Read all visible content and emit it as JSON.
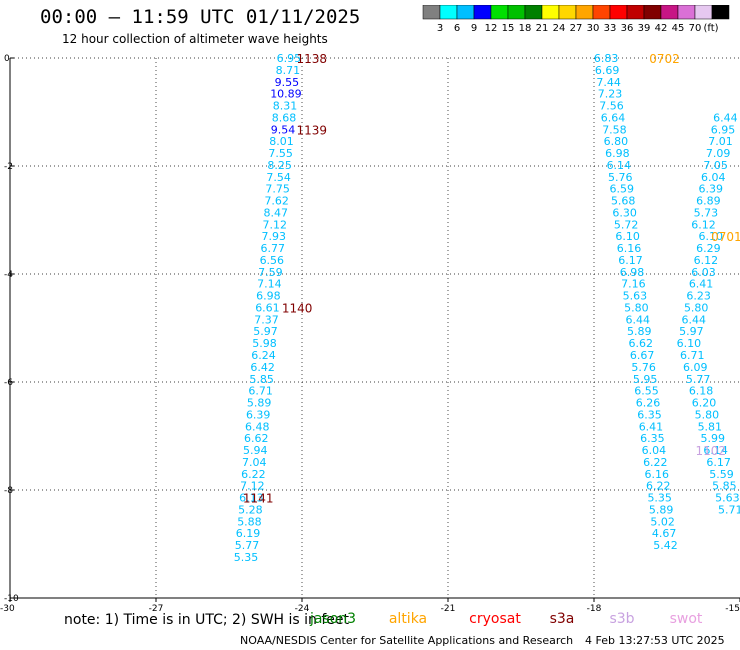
{
  "header": {
    "title": "00:00 – 11:59 UTC 01/11/2025",
    "subtitle": "12 hour collection of altimeter wave heights"
  },
  "colorbar": {
    "colors": [
      "#808080",
      "#00ffff",
      "#00bfff",
      "#0000ff",
      "#00e000",
      "#00c000",
      "#008000",
      "#ffff00",
      "#ffd700",
      "#ffa500",
      "#ff4500",
      "#ff0000",
      "#c00000",
      "#800000",
      "#c71585",
      "#da70d6",
      "#e6c8f0",
      "#000000"
    ],
    "ticks": [
      "3",
      "6",
      "9",
      "12",
      "15",
      "18",
      "21",
      "24",
      "27",
      "30",
      "33",
      "36",
      "39",
      "42",
      "45",
      "70"
    ],
    "unit": "(ft)"
  },
  "footer": {
    "note": "note: 1) Time is in UTC; 2) SWH is in feet",
    "credit": "NOAA/NESDIS Center for Satellite Applications and Research",
    "timestamp": "4 Feb 13:27:53 UTC 2025"
  },
  "legend": [
    {
      "name": "jason3",
      "color": "#008000"
    },
    {
      "name": "altika",
      "color": "#ffa500"
    },
    {
      "name": "cryosat",
      "color": "#ff0000"
    },
    {
      "name": "s3a",
      "color": "#800000"
    },
    {
      "name": "s3b",
      "color": "#c8a2e0"
    },
    {
      "name": "swot",
      "color": "#e8a0e0"
    }
  ],
  "chart_data": {
    "type": "scatter",
    "xlim": [
      -30,
      -15
    ],
    "ylim": [
      -10,
      0
    ],
    "xticks": [
      "-30",
      "-27",
      "-24",
      "-21",
      "-18",
      "-15"
    ],
    "yticks": [
      "0",
      "-2",
      "-4",
      "-6",
      "-8",
      "-10"
    ],
    "tracks": [
      {
        "points": [
          {
            "x": -24.27,
            "y": 0.0,
            "v": "6.95",
            "c": "#00bfff"
          },
          {
            "x": -24.29,
            "y": -0.22,
            "v": "8.71",
            "c": "#00bfff"
          },
          {
            "x": -24.31,
            "y": -0.44,
            "v": "9.55",
            "c": "#0000ff"
          },
          {
            "x": -24.33,
            "y": -0.66,
            "v": "10.89",
            "c": "#0000ff"
          },
          {
            "x": -24.35,
            "y": -0.88,
            "v": "8.31",
            "c": "#00bfff"
          },
          {
            "x": -24.37,
            "y": -1.1,
            "v": "8.68",
            "c": "#00bfff"
          },
          {
            "x": -24.39,
            "y": -1.32,
            "v": "9.54",
            "c": "#0000ff"
          },
          {
            "x": -24.42,
            "y": -1.54,
            "v": "8.01",
            "c": "#00bfff"
          },
          {
            "x": -24.44,
            "y": -1.76,
            "v": "7.55",
            "c": "#00bfff"
          },
          {
            "x": -24.46,
            "y": -1.98,
            "v": "8.25",
            "c": "#00bfff"
          },
          {
            "x": -24.48,
            "y": -2.2,
            "v": "7.54",
            "c": "#00bfff"
          },
          {
            "x": -24.5,
            "y": -2.42,
            "v": "7.75",
            "c": "#00bfff"
          },
          {
            "x": -24.52,
            "y": -2.64,
            "v": "7.62",
            "c": "#00bfff"
          },
          {
            "x": -24.54,
            "y": -2.86,
            "v": "8.47",
            "c": "#00bfff"
          },
          {
            "x": -24.56,
            "y": -3.08,
            "v": "7.12",
            "c": "#00bfff"
          },
          {
            "x": -24.58,
            "y": -3.3,
            "v": "7.93",
            "c": "#00bfff"
          },
          {
            "x": -24.6,
            "y": -3.52,
            "v": "6.77",
            "c": "#00bfff"
          },
          {
            "x": -24.62,
            "y": -3.74,
            "v": "6.56",
            "c": "#00bfff"
          },
          {
            "x": -24.65,
            "y": -3.96,
            "v": "7.59",
            "c": "#00bfff"
          },
          {
            "x": -24.67,
            "y": -4.18,
            "v": "7.14",
            "c": "#00bfff"
          },
          {
            "x": -24.69,
            "y": -4.4,
            "v": "6.98",
            "c": "#00bfff"
          },
          {
            "x": -24.71,
            "y": -4.62,
            "v": "6.61",
            "c": "#00bfff"
          },
          {
            "x": -24.73,
            "y": -4.84,
            "v": "7.37",
            "c": "#00bfff"
          },
          {
            "x": -24.75,
            "y": -5.06,
            "v": "5.97",
            "c": "#00bfff"
          },
          {
            "x": -24.77,
            "y": -5.28,
            "v": "5.98",
            "c": "#00bfff"
          },
          {
            "x": -24.79,
            "y": -5.5,
            "v": "6.24",
            "c": "#00bfff"
          },
          {
            "x": -24.81,
            "y": -5.72,
            "v": "6.42",
            "c": "#00bfff"
          },
          {
            "x": -24.83,
            "y": -5.94,
            "v": "5.85",
            "c": "#00bfff"
          },
          {
            "x": -24.85,
            "y": -6.16,
            "v": "6.71",
            "c": "#00bfff"
          },
          {
            "x": -24.88,
            "y": -6.38,
            "v": "5.89",
            "c": "#00bfff"
          },
          {
            "x": -24.9,
            "y": -6.6,
            "v": "6.39",
            "c": "#00bfff"
          },
          {
            "x": -24.92,
            "y": -6.82,
            "v": "6.48",
            "c": "#00bfff"
          },
          {
            "x": -24.94,
            "y": -7.04,
            "v": "6.62",
            "c": "#00bfff"
          },
          {
            "x": -24.96,
            "y": -7.26,
            "v": "5.94",
            "c": "#00bfff"
          },
          {
            "x": -24.98,
            "y": -7.48,
            "v": "7.04",
            "c": "#00bfff"
          },
          {
            "x": -25.0,
            "y": -7.7,
            "v": "6.22",
            "c": "#00bfff"
          },
          {
            "x": -25.02,
            "y": -7.92,
            "v": "7.12",
            "c": "#00bfff"
          },
          {
            "x": -25.04,
            "y": -8.14,
            "v": "6.13",
            "c": "#00bfff"
          },
          {
            "x": -25.06,
            "y": -8.36,
            "v": "5.28",
            "c": "#00bfff"
          },
          {
            "x": -25.08,
            "y": -8.58,
            "v": "5.88",
            "c": "#00bfff"
          },
          {
            "x": -25.11,
            "y": -8.8,
            "v": "6.19",
            "c": "#00bfff"
          },
          {
            "x": -25.13,
            "y": -9.02,
            "v": "5.77",
            "c": "#00bfff"
          },
          {
            "x": -25.15,
            "y": -9.24,
            "v": "5.35",
            "c": "#00bfff"
          }
        ]
      },
      {
        "points": [
          {
            "x": -17.75,
            "y": 0.0,
            "v": "6.83",
            "c": "#00bfff"
          },
          {
            "x": -17.73,
            "y": -0.22,
            "v": "6.69",
            "c": "#00bfff"
          },
          {
            "x": -17.7,
            "y": -0.44,
            "v": "7.44",
            "c": "#00bfff"
          },
          {
            "x": -17.67,
            "y": -0.66,
            "v": "7.23",
            "c": "#00bfff"
          },
          {
            "x": -17.64,
            "y": -0.88,
            "v": "7.56",
            "c": "#00bfff"
          },
          {
            "x": -17.61,
            "y": -1.1,
            "v": "6.64",
            "c": "#00bfff"
          },
          {
            "x": -17.58,
            "y": -1.32,
            "v": "7.58",
            "c": "#00bfff"
          },
          {
            "x": -17.55,
            "y": -1.54,
            "v": "6.80",
            "c": "#00bfff"
          },
          {
            "x": -17.52,
            "y": -1.76,
            "v": "6.98",
            "c": "#00bfff"
          },
          {
            "x": -17.49,
            "y": -1.98,
            "v": "6.14",
            "c": "#00bfff"
          },
          {
            "x": -17.46,
            "y": -2.2,
            "v": "5.76",
            "c": "#00bfff"
          },
          {
            "x": -17.43,
            "y": -2.42,
            "v": "6.59",
            "c": "#00bfff"
          },
          {
            "x": -17.4,
            "y": -2.64,
            "v": "5.68",
            "c": "#00bfff"
          },
          {
            "x": -17.37,
            "y": -2.86,
            "v": "6.30",
            "c": "#00bfff"
          },
          {
            "x": -17.34,
            "y": -3.08,
            "v": "5.72",
            "c": "#00bfff"
          },
          {
            "x": -17.31,
            "y": -3.3,
            "v": "6.10",
            "c": "#00bfff"
          },
          {
            "x": -17.28,
            "y": -3.52,
            "v": "6.16",
            "c": "#00bfff"
          },
          {
            "x": -17.25,
            "y": -3.74,
            "v": "6.17",
            "c": "#00bfff"
          },
          {
            "x": -17.22,
            "y": -3.96,
            "v": "6.98",
            "c": "#00bfff"
          },
          {
            "x": -17.19,
            "y": -4.18,
            "v": "7.16",
            "c": "#00bfff"
          },
          {
            "x": -17.16,
            "y": -4.4,
            "v": "5.63",
            "c": "#00bfff"
          },
          {
            "x": -17.13,
            "y": -4.62,
            "v": "5.80",
            "c": "#00bfff"
          },
          {
            "x": -17.1,
            "y": -4.84,
            "v": "6.44",
            "c": "#00bfff"
          },
          {
            "x": -17.07,
            "y": -5.06,
            "v": "5.89",
            "c": "#00bfff"
          },
          {
            "x": -17.04,
            "y": -5.28,
            "v": "6.62",
            "c": "#00bfff"
          },
          {
            "x": -17.01,
            "y": -5.5,
            "v": "6.67",
            "c": "#00bfff"
          },
          {
            "x": -16.98,
            "y": -5.72,
            "v": "5.76",
            "c": "#00bfff"
          },
          {
            "x": -16.95,
            "y": -5.94,
            "v": "5.95",
            "c": "#00bfff"
          },
          {
            "x": -16.92,
            "y": -6.16,
            "v": "6.55",
            "c": "#00bfff"
          },
          {
            "x": -16.89,
            "y": -6.38,
            "v": "6.26",
            "c": "#00bfff"
          },
          {
            "x": -16.86,
            "y": -6.6,
            "v": "6.35",
            "c": "#00bfff"
          },
          {
            "x": -16.83,
            "y": -6.82,
            "v": "6.41",
            "c": "#00bfff"
          },
          {
            "x": -16.8,
            "y": -7.04,
            "v": "6.35",
            "c": "#00bfff"
          },
          {
            "x": -16.77,
            "y": -7.26,
            "v": "6.04",
            "c": "#00bfff"
          },
          {
            "x": -16.74,
            "y": -7.48,
            "v": "6.22",
            "c": "#00bfff"
          },
          {
            "x": -16.71,
            "y": -7.7,
            "v": "6.16",
            "c": "#00bfff"
          },
          {
            "x": -16.68,
            "y": -7.92,
            "v": "6.22",
            "c": "#00bfff"
          },
          {
            "x": -16.65,
            "y": -8.14,
            "v": "5.35",
            "c": "#00bfff"
          },
          {
            "x": -16.62,
            "y": -8.36,
            "v": "5.89",
            "c": "#00bfff"
          },
          {
            "x": -16.59,
            "y": -8.58,
            "v": "5.02",
            "c": "#00bfff"
          },
          {
            "x": -16.56,
            "y": -8.8,
            "v": "4.67",
            "c": "#00bfff"
          },
          {
            "x": -16.53,
            "y": -9.02,
            "v": "5.42",
            "c": "#00bfff"
          }
        ]
      },
      {
        "points": [
          {
            "x": -15.6,
            "y": -3.3,
            "v": "6.10",
            "c": "#00bfff"
          },
          {
            "x": -15.65,
            "y": -3.52,
            "v": "6.29",
            "c": "#00bfff"
          },
          {
            "x": -15.7,
            "y": -3.74,
            "v": "6.12",
            "c": "#00bfff"
          },
          {
            "x": -15.75,
            "y": -3.96,
            "v": "6.03",
            "c": "#00bfff"
          },
          {
            "x": -15.8,
            "y": -4.18,
            "v": "6.41",
            "c": "#00bfff"
          },
          {
            "x": -15.85,
            "y": -4.4,
            "v": "6.23",
            "c": "#00bfff"
          },
          {
            "x": -15.9,
            "y": -4.62,
            "v": "5.80",
            "c": "#00bfff"
          },
          {
            "x": -15.95,
            "y": -4.84,
            "v": "6.44",
            "c": "#00bfff"
          },
          {
            "x": -16.0,
            "y": -5.06,
            "v": "5.97",
            "c": "#00bfff"
          },
          {
            "x": -16.05,
            "y": -5.28,
            "v": "6.10",
            "c": "#00bfff"
          },
          {
            "x": -15.98,
            "y": -5.5,
            "v": "6.71",
            "c": "#00bfff"
          },
          {
            "x": -15.92,
            "y": -5.72,
            "v": "6.09",
            "c": "#00bfff"
          },
          {
            "x": -15.86,
            "y": -5.94,
            "v": "5.77",
            "c": "#00bfff"
          },
          {
            "x": -15.8,
            "y": -6.16,
            "v": "6.18",
            "c": "#00bfff"
          },
          {
            "x": -15.74,
            "y": -6.38,
            "v": "6.20",
            "c": "#00bfff"
          },
          {
            "x": -15.68,
            "y": -6.6,
            "v": "5.80",
            "c": "#00bfff"
          },
          {
            "x": -15.62,
            "y": -6.82,
            "v": "5.81",
            "c": "#00bfff"
          },
          {
            "x": -15.56,
            "y": -7.04,
            "v": "5.99",
            "c": "#00bfff"
          },
          {
            "x": -15.5,
            "y": -7.26,
            "v": "6.14",
            "c": "#00bfff"
          },
          {
            "x": -15.44,
            "y": -7.48,
            "v": "6.17",
            "c": "#00bfff"
          },
          {
            "x": -15.38,
            "y": -7.7,
            "v": "5.59",
            "c": "#00bfff"
          },
          {
            "x": -15.32,
            "y": -7.92,
            "v": "5.85",
            "c": "#00bfff"
          },
          {
            "x": -15.26,
            "y": -8.14,
            "v": "5.63",
            "c": "#00bfff"
          },
          {
            "x": -15.2,
            "y": -8.36,
            "v": "5.71",
            "c": "#00bfff"
          }
        ]
      },
      {
        "points": [
          {
            "x": -15.3,
            "y": -1.1,
            "v": "6.44",
            "c": "#00bfff"
          },
          {
            "x": -15.35,
            "y": -1.32,
            "v": "6.95",
            "c": "#00bfff"
          },
          {
            "x": -15.4,
            "y": -1.54,
            "v": "7.01",
            "c": "#00bfff"
          },
          {
            "x": -15.45,
            "y": -1.76,
            "v": "7.09",
            "c": "#00bfff"
          },
          {
            "x": -15.5,
            "y": -1.98,
            "v": "7.05",
            "c": "#00bfff"
          },
          {
            "x": -15.55,
            "y": -2.2,
            "v": "6.04",
            "c": "#00bfff"
          },
          {
            "x": -15.6,
            "y": -2.42,
            "v": "6.39",
            "c": "#00bfff"
          },
          {
            "x": -15.65,
            "y": -2.64,
            "v": "6.89",
            "c": "#00bfff"
          },
          {
            "x": -15.7,
            "y": -2.86,
            "v": "5.73",
            "c": "#00bfff"
          },
          {
            "x": -15.75,
            "y": -3.08,
            "v": "6.12",
            "c": "#00bfff"
          }
        ]
      }
    ],
    "time_labels": [
      {
        "x": -23.8,
        "y": 0.0,
        "v": "1138",
        "c": "#800000"
      },
      {
        "x": -23.8,
        "y": -1.32,
        "v": "1139",
        "c": "#800000"
      },
      {
        "x": -24.1,
        "y": -4.62,
        "v": "1140",
        "c": "#800000"
      },
      {
        "x": -24.9,
        "y": -8.14,
        "v": "1141",
        "c": "#800000"
      },
      {
        "x": -16.55,
        "y": 0.0,
        "v": "0702",
        "c": "#ffa500"
      },
      {
        "x": -15.28,
        "y": -3.3,
        "v": "0701",
        "c": "#ffa500"
      },
      {
        "x": -15.6,
        "y": -7.26,
        "v": "1102",
        "c": "#c8a2e0"
      }
    ]
  }
}
